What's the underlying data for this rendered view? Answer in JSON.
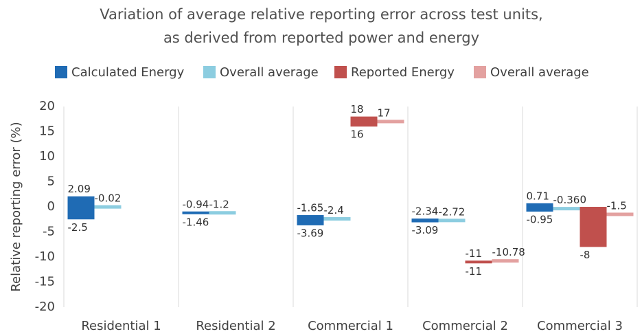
{
  "chart_data": {
    "type": "range-bar",
    "title": [
      "Variation of average relative reporting error across test units,",
      "as derived from reported power and energy"
    ],
    "y_label": "Relative reporting error (%)",
    "categories": [
      "Residential 1",
      "Residential 2",
      "Commercial 1",
      "Commercial 2",
      "Commercial 3"
    ],
    "series": [
      {
        "name": "Calculated Energy",
        "color": "#1f6bb4",
        "kind": "range",
        "values": [
          2.09,
          -0.94,
          -1.65,
          -2.34,
          0.71
        ],
        "low": [
          -2.5,
          -1.46,
          -3.69,
          -3.09,
          -0.95
        ]
      },
      {
        "name": "Overall average",
        "color": "#8ccde0",
        "kind": "average",
        "values": [
          -0.02,
          -1.2,
          -2.4,
          -2.72,
          -0.36
        ]
      },
      {
        "name": "Reported Energy",
        "color": "#c0504d",
        "kind": "range",
        "values": [
          null,
          null,
          18,
          -11,
          0
        ],
        "low": [
          null,
          null,
          16,
          -11,
          -8
        ]
      },
      {
        "name": "Overall average",
        "color": "#e3a1a0",
        "kind": "average",
        "values": [
          null,
          null,
          17,
          -10.78,
          -1.5
        ]
      }
    ],
    "ylim": [
      -20,
      20
    ],
    "yticks": [
      -20,
      -15,
      -10,
      -5,
      0,
      5,
      10,
      15,
      20
    ]
  }
}
